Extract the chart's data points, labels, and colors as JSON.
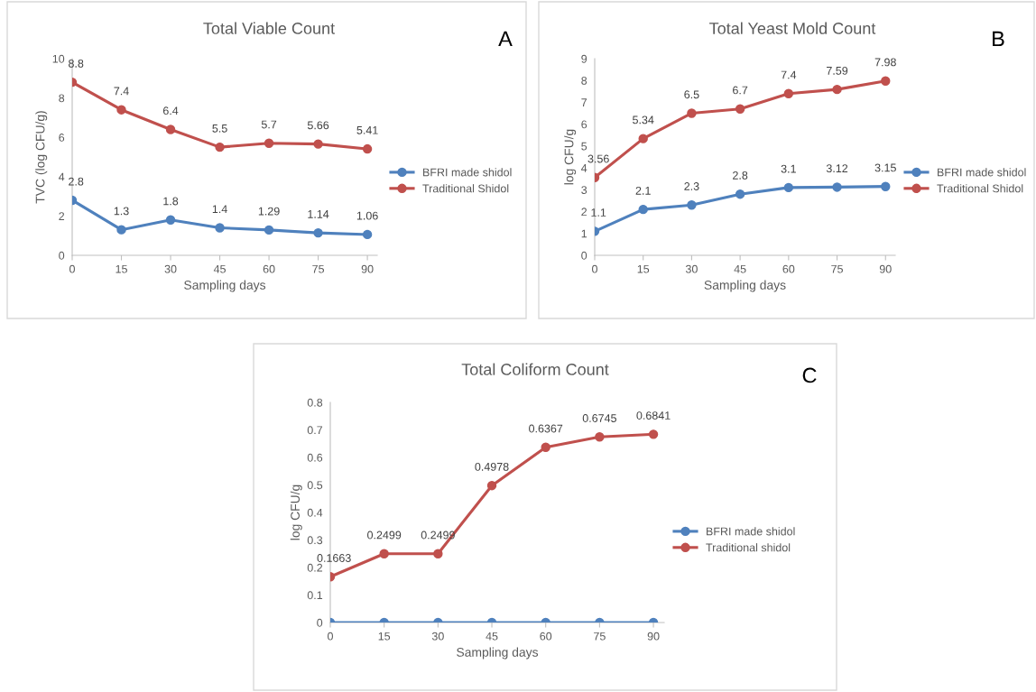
{
  "chart_data": [
    {
      "type": "line",
      "title": "Total Viable Count",
      "xlabel": "Sampling days",
      "ylabel": "TVC (log CFU/g)",
      "categories": [
        "0",
        "15",
        "30",
        "45",
        "60",
        "75",
        "90"
      ],
      "series": [
        {
          "name": "BFRI made shidol",
          "color": "#4f81bd",
          "values": [
            2.8,
            1.3,
            1.8,
            1.4,
            1.29,
            1.14,
            1.06
          ]
        },
        {
          "name": "Traditional Shidol",
          "color": "#c0504d",
          "values": [
            8.8,
            7.4,
            6.4,
            5.5,
            5.7,
            5.66,
            5.41
          ]
        }
      ],
      "ylim": [
        0,
        10
      ],
      "yticks": [
        0,
        2,
        4,
        6,
        8,
        10
      ],
      "data_labels": true,
      "legend": "right",
      "marker": "circle",
      "annotations": [
        "A"
      ]
    },
    {
      "type": "line",
      "title": "Total Yeast Mold Count",
      "xlabel": "Sampling days",
      "ylabel": "log CFU/g",
      "categories": [
        "0",
        "15",
        "30",
        "45",
        "60",
        "75",
        "90"
      ],
      "series": [
        {
          "name": "BFRI made shidol",
          "color": "#4f81bd",
          "values": [
            1.1,
            2.1,
            2.3,
            2.8,
            3.1,
            3.12,
            3.15
          ]
        },
        {
          "name": "Traditional Shidol",
          "color": "#c0504d",
          "values": [
            3.56,
            5.34,
            6.5,
            6.7,
            7.4,
            7.59,
            7.98
          ]
        }
      ],
      "ylim": [
        0,
        9
      ],
      "yticks": [
        0,
        1,
        2,
        3,
        4,
        5,
        6,
        7,
        8,
        9
      ],
      "data_labels": true,
      "legend": "right",
      "marker": "circle",
      "annotations": [
        "B"
      ]
    },
    {
      "type": "line",
      "title": "Total Coliform Count",
      "xlabel": "Sampling days",
      "ylabel": "log CFU/g",
      "categories": [
        "0",
        "15",
        "30",
        "45",
        "60",
        "75",
        "90"
      ],
      "series": [
        {
          "name": "BFRI made shidol",
          "color": "#4f81bd",
          "values": [
            0,
            0,
            0,
            0,
            0,
            0,
            0
          ],
          "value_labels": [
            null,
            null,
            null,
            null,
            null,
            null,
            null
          ]
        },
        {
          "name": "Traditional shidol",
          "color": "#c0504d",
          "values": [
            0.1663,
            0.2499,
            0.2499,
            0.4978,
            0.6367,
            0.6745,
            0.6841
          ],
          "value_labels": [
            "0.1663",
            "0.2499",
            "0.2499",
            "0.4978",
            "0.6367",
            "0.6745",
            "0.6841"
          ]
        }
      ],
      "ylim": [
        0,
        0.8
      ],
      "yticks": [
        0,
        0.1,
        0.2,
        0.3,
        0.4,
        0.5,
        0.6,
        0.7,
        0.8
      ],
      "legend": "right",
      "marker": "circle",
      "annotations": [
        "C"
      ]
    }
  ]
}
